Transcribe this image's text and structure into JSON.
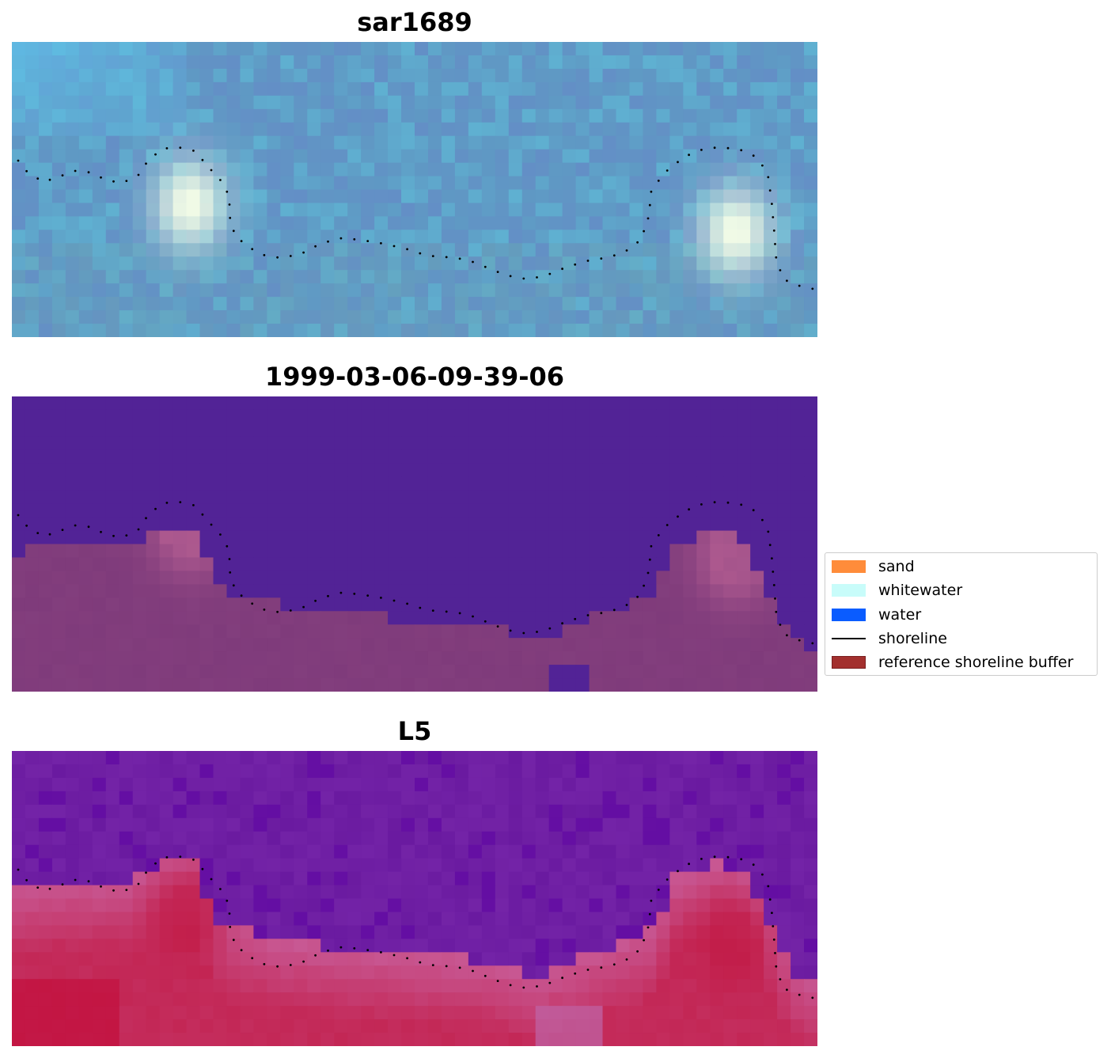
{
  "panels": [
    {
      "title": "sar1689",
      "style": "sar-rgb"
    },
    {
      "title": "1999-03-06-09-39-06",
      "style": "classified"
    },
    {
      "title": "L5",
      "style": "index"
    }
  ],
  "legend": {
    "items": [
      {
        "label": "sand",
        "kind": "patch",
        "color": "#ff8c3a"
      },
      {
        "label": "whitewater",
        "kind": "patch",
        "color": "#c8fcfa"
      },
      {
        "label": "water",
        "kind": "patch",
        "color": "#0a5cff"
      },
      {
        "label": "shoreline",
        "kind": "line",
        "color": "#000000"
      },
      {
        "label": "reference shoreline buffer",
        "kind": "patch",
        "color": "#a3302e",
        "edge": "#7a1f1f"
      }
    ]
  },
  "colors": {
    "classified_water": "#522396",
    "classified_buffer": "#7f3b7b",
    "sar_base": "#5f99c4",
    "index_low": "#6a1aa0",
    "index_high": "#c21a45",
    "shoreline_dots": "#000000"
  }
}
